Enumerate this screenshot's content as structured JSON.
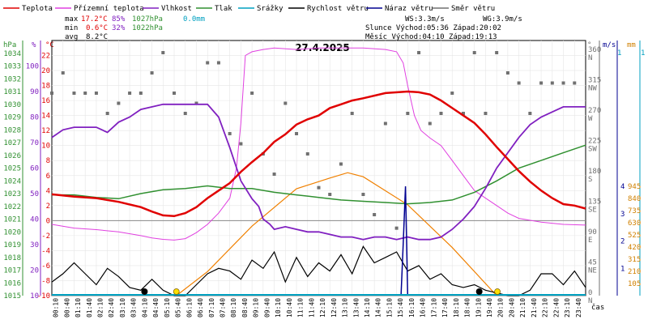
{
  "chart_data": {
    "type": "line",
    "title": "27.4.2025",
    "xlabel": "čas",
    "legend": [
      {
        "name": "Teplota",
        "color": "#e00000"
      },
      {
        "name": "Přízemní teplota",
        "color": "#e040e0"
      },
      {
        "name": "Vlhkost",
        "color": "#8020c0"
      },
      {
        "name": "Tlak",
        "color": "#309030"
      },
      {
        "name": "Srážky",
        "color": "#00a0c0"
      },
      {
        "name": "Rychlost větru",
        "color": "#000000"
      },
      {
        "name": "Náraz větru",
        "color": "#000090"
      },
      {
        "name": "Směr větru",
        "color": "#707070"
      }
    ],
    "stats": {
      "max": {
        "label": "max",
        "temp": "17.2°C",
        "hum": "85%",
        "press": "1027hPa",
        "rain": "0.0mm"
      },
      "min": {
        "label": "min",
        "temp": "0.6°C",
        "hum": "32%",
        "press": "1022hPa"
      },
      "avg": {
        "label": "avg",
        "temp": "8.2°C"
      }
    },
    "info": {
      "ws": "WS:3.3m/s",
      "wg": "WG:3.9m/s",
      "sun": "Slunce Východ:05:36  Západ:20:02",
      "moon": "Měsíc  Východ:04:10  Západ:19:13"
    },
    "axes": {
      "hpa": {
        "unit": "hPa",
        "ticks": [
          1015,
          1016,
          1017,
          1018,
          1019,
          1020,
          1021,
          1022,
          1023,
          1024,
          1025,
          1026,
          1027,
          1028,
          1029,
          1030,
          1031,
          1032,
          1033,
          1034
        ]
      },
      "pct": {
        "unit": "%",
        "ticks": [
          10,
          20,
          30,
          40,
          50,
          60,
          70,
          80,
          90,
          100
        ]
      },
      "temp": {
        "unit": "°C",
        "ticks": [
          -10,
          -8,
          -6,
          -4,
          -2,
          0,
          2,
          4,
          6,
          8,
          10,
          12,
          14,
          16,
          18,
          20,
          22
        ]
      },
      "dir": {
        "unit": "°",
        "ticks": [
          {
            "deg": "0",
            "dir": "N"
          },
          {
            "deg": "45",
            "dir": "NE"
          },
          {
            "deg": "90",
            "dir": "E"
          },
          {
            "deg": "135",
            "dir": "SE"
          },
          {
            "deg": "180",
            "dir": "S"
          },
          {
            "deg": "225",
            "dir": "SW"
          },
          {
            "deg": "270",
            "dir": "W"
          },
          {
            "deg": "315",
            "dir": "NW"
          },
          {
            "deg": "360",
            "dir": "N"
          }
        ]
      },
      "ms": {
        "unit": "m/s",
        "ticks": [
          1,
          2,
          3,
          4
        ]
      },
      "mm": {
        "unit": "mm",
        "ticks": [
          105,
          210,
          315,
          420,
          525,
          630,
          735,
          840,
          945
        ]
      },
      "ms_top": "1",
      "mm_top": "1",
      "x_ticks": [
        "00:10",
        "00:40",
        "01:10",
        "01:40",
        "02:10",
        "02:40",
        "03:10",
        "03:40",
        "04:10",
        "04:40",
        "05:10",
        "05:40",
        "06:10",
        "06:40",
        "07:10",
        "07:40",
        "08:10",
        "08:40",
        "09:10",
        "09:40",
        "10:10",
        "10:40",
        "11:10",
        "11:40",
        "12:10",
        "12:40",
        "13:10",
        "13:40",
        "14:10",
        "14:40",
        "15:10",
        "15:40",
        "16:10",
        "16:40",
        "17:10",
        "17:40",
        "18:10",
        "18:40",
        "19:10",
        "19:40",
        "20:10",
        "20:40",
        "21:10",
        "21:40",
        "22:10",
        "22:40",
        "23:10",
        "23:40"
      ]
    },
    "series": {
      "temperature": [
        [
          0,
          3.5
        ],
        [
          1,
          3.2
        ],
        [
          2,
          3
        ],
        [
          3,
          2.5
        ],
        [
          4,
          1.8
        ],
        [
          4.5,
          1.2
        ],
        [
          5,
          0.7
        ],
        [
          5.5,
          0.6
        ],
        [
          6,
          1
        ],
        [
          6.5,
          1.8
        ],
        [
          7,
          3
        ],
        [
          7.5,
          4
        ],
        [
          8,
          5
        ],
        [
          8.5,
          6.5
        ],
        [
          9,
          7.8
        ],
        [
          9.5,
          9
        ],
        [
          10,
          10.5
        ],
        [
          10.5,
          11.5
        ],
        [
          11,
          12.8
        ],
        [
          11.5,
          13.5
        ],
        [
          12,
          14
        ],
        [
          12.5,
          15
        ],
        [
          13,
          15.5
        ],
        [
          13.5,
          16
        ],
        [
          14,
          16.3
        ],
        [
          15,
          17
        ],
        [
          16,
          17.2
        ],
        [
          16.5,
          17.1
        ],
        [
          17,
          16.8
        ],
        [
          17.5,
          16
        ],
        [
          18,
          15
        ],
        [
          18.5,
          14
        ],
        [
          19,
          13
        ],
        [
          19.5,
          11.5
        ],
        [
          20,
          9.8
        ],
        [
          20.5,
          8.2
        ],
        [
          21,
          6.6
        ],
        [
          21.5,
          5.2
        ],
        [
          22,
          4
        ],
        [
          22.5,
          3
        ],
        [
          23,
          2.2
        ],
        [
          23.5,
          2
        ],
        [
          24,
          1.6
        ]
      ],
      "ground_temperature": [
        [
          0,
          -0.5
        ],
        [
          1,
          -1
        ],
        [
          2,
          -1.2
        ],
        [
          3,
          -1.5
        ],
        [
          4,
          -2
        ],
        [
          4.5,
          -2.3
        ],
        [
          5,
          -2.5
        ],
        [
          5.5,
          -2.6
        ],
        [
          6,
          -2.4
        ],
        [
          6.5,
          -1.6
        ],
        [
          7,
          -0.5
        ],
        [
          7.5,
          1
        ],
        [
          8,
          3
        ],
        [
          8.3,
          7
        ],
        [
          8.5,
          13
        ],
        [
          8.7,
          22
        ],
        [
          9,
          22.5
        ],
        [
          9.5,
          22.8
        ],
        [
          10,
          23
        ],
        [
          11,
          22.8
        ],
        [
          12,
          23
        ],
        [
          13,
          23
        ],
        [
          14,
          23
        ],
        [
          15,
          22.8
        ],
        [
          15.5,
          22.5
        ],
        [
          15.8,
          21
        ],
        [
          16,
          18
        ],
        [
          16.3,
          14
        ],
        [
          16.6,
          12
        ],
        [
          17,
          11
        ],
        [
          17.5,
          10
        ],
        [
          18,
          8
        ],
        [
          18.5,
          6
        ],
        [
          19,
          4
        ],
        [
          19.5,
          3
        ],
        [
          20,
          2
        ],
        [
          20.5,
          1
        ],
        [
          21,
          0.3
        ],
        [
          22,
          -0.2
        ],
        [
          23,
          -0.5
        ],
        [
          24,
          -0.6
        ]
      ],
      "humidity": [
        [
          0,
          72
        ],
        [
          0.5,
          75
        ],
        [
          1,
          76
        ],
        [
          2,
          76
        ],
        [
          2.5,
          74
        ],
        [
          3,
          78
        ],
        [
          3.5,
          80
        ],
        [
          4,
          83
        ],
        [
          5,
          85
        ],
        [
          6,
          85
        ],
        [
          7,
          85
        ],
        [
          7.5,
          80
        ],
        [
          8,
          68
        ],
        [
          8.5,
          55
        ],
        [
          9,
          48
        ],
        [
          9.3,
          45
        ],
        [
          9.5,
          40
        ],
        [
          9.8,
          38
        ],
        [
          10,
          36
        ],
        [
          10.5,
          37
        ],
        [
          11,
          36
        ],
        [
          11.5,
          35
        ],
        [
          12,
          35
        ],
        [
          12.5,
          34
        ],
        [
          13,
          33
        ],
        [
          13.5,
          33
        ],
        [
          14,
          32
        ],
        [
          14.5,
          33
        ],
        [
          15,
          33
        ],
        [
          15.5,
          32
        ],
        [
          16,
          33
        ],
        [
          16.5,
          32
        ],
        [
          17,
          32
        ],
        [
          17.5,
          33
        ],
        [
          18,
          36
        ],
        [
          18.5,
          40
        ],
        [
          19,
          45
        ],
        [
          19.5,
          52
        ],
        [
          20,
          60
        ],
        [
          20.5,
          66
        ],
        [
          21,
          72
        ],
        [
          21.5,
          77
        ],
        [
          22,
          80
        ],
        [
          22.5,
          82
        ],
        [
          23,
          84
        ],
        [
          24,
          84
        ]
      ],
      "pressure": [
        [
          0,
          1022.9
        ],
        [
          1,
          1022.9
        ],
        [
          2,
          1022.7
        ],
        [
          3,
          1022.6
        ],
        [
          4,
          1023
        ],
        [
          5,
          1023.3
        ],
        [
          6,
          1023.4
        ],
        [
          7,
          1023.6
        ],
        [
          8,
          1023.4
        ],
        [
          9,
          1023.4
        ],
        [
          10,
          1023.1
        ],
        [
          11,
          1022.9
        ],
        [
          12,
          1022.7
        ],
        [
          13,
          1022.5
        ],
        [
          14,
          1022.4
        ],
        [
          15,
          1022.3
        ],
        [
          16,
          1022.2
        ],
        [
          17,
          1022.3
        ],
        [
          18,
          1022.5
        ],
        [
          19,
          1023.1
        ],
        [
          20,
          1024
        ],
        [
          21,
          1025
        ],
        [
          22,
          1025.6
        ],
        [
          23,
          1026.2
        ],
        [
          24,
          1026.8
        ]
      ],
      "wind_speed": [
        [
          0,
          0.5
        ],
        [
          0.5,
          0.8
        ],
        [
          1,
          1.2
        ],
        [
          1.5,
          0.8
        ],
        [
          2,
          0.4
        ],
        [
          2.5,
          1
        ],
        [
          3,
          0.7
        ],
        [
          3.5,
          0.3
        ],
        [
          4,
          0.2
        ],
        [
          4.5,
          0.6
        ],
        [
          5,
          0.2
        ],
        [
          5.5,
          0
        ],
        [
          6,
          0
        ],
        [
          6.5,
          0.4
        ],
        [
          7,
          0.8
        ],
        [
          7.5,
          1
        ],
        [
          8,
          0.9
        ],
        [
          8.5,
          0.6
        ],
        [
          9,
          1.3
        ],
        [
          9.5,
          1
        ],
        [
          10,
          1.6
        ],
        [
          10.5,
          0.5
        ],
        [
          11,
          1.4
        ],
        [
          11.5,
          0.7
        ],
        [
          12,
          1.2
        ],
        [
          12.5,
          0.9
        ],
        [
          13,
          1.5
        ],
        [
          13.5,
          0.8
        ],
        [
          14,
          1.8
        ],
        [
          14.5,
          1.2
        ],
        [
          15,
          1.4
        ],
        [
          15.5,
          1.6
        ],
        [
          16,
          0.9
        ],
        [
          16.5,
          1.1
        ],
        [
          17,
          0.6
        ],
        [
          17.5,
          0.8
        ],
        [
          18,
          0.4
        ],
        [
          18.5,
          0.3
        ],
        [
          19,
          0.4
        ],
        [
          19.5,
          0.2
        ],
        [
          20,
          0.1
        ],
        [
          20.5,
          0
        ],
        [
          21,
          0
        ],
        [
          21.5,
          0.2
        ],
        [
          22,
          0.8
        ],
        [
          22.5,
          0.8
        ],
        [
          23,
          0.4
        ],
        [
          23.5,
          0.9
        ],
        [
          24,
          0.3
        ]
      ],
      "wind_gust": [
        [
          15.7,
          0
        ],
        [
          15.8,
          1.9
        ],
        [
          15.9,
          4
        ],
        [
          16,
          0
        ]
      ],
      "sun_elevation": [
        [
          5.6,
          0
        ],
        [
          7,
          9
        ],
        [
          9,
          26
        ],
        [
          11,
          40
        ],
        [
          12.5,
          44
        ],
        [
          13.3,
          46
        ],
        [
          14,
          44.5
        ],
        [
          16,
          34
        ],
        [
          18,
          18
        ],
        [
          20,
          0
        ]
      ],
      "wind_direction": [
        [
          0,
          300
        ],
        [
          0.5,
          330
        ],
        [
          1,
          300
        ],
        [
          1.5,
          300
        ],
        [
          2,
          300
        ],
        [
          2.5,
          270
        ],
        [
          3,
          285
        ],
        [
          3.5,
          300
        ],
        [
          4,
          300
        ],
        [
          4.5,
          330
        ],
        [
          5,
          360
        ],
        [
          5.5,
          300
        ],
        [
          6,
          270
        ],
        [
          6.5,
          285
        ],
        [
          7,
          345
        ],
        [
          7.5,
          345
        ],
        [
          8,
          240
        ],
        [
          8.5,
          225
        ],
        [
          9,
          300
        ],
        [
          9.5,
          210
        ],
        [
          10,
          180
        ],
        [
          10.5,
          285
        ],
        [
          11,
          240
        ],
        [
          11.5,
          210
        ],
        [
          12,
          160
        ],
        [
          12.5,
          150
        ],
        [
          13,
          195
        ],
        [
          13.5,
          270
        ],
        [
          14,
          150
        ],
        [
          14.5,
          120
        ],
        [
          15,
          255
        ],
        [
          15.5,
          100
        ],
        [
          16,
          270
        ],
        [
          16.5,
          360
        ],
        [
          17,
          255
        ],
        [
          17.5,
          270
        ],
        [
          18,
          300
        ],
        [
          18.5,
          270
        ],
        [
          19,
          360
        ],
        [
          19.5,
          270
        ],
        [
          20,
          360
        ],
        [
          20.5,
          330
        ],
        [
          21,
          315
        ],
        [
          21.5,
          270
        ],
        [
          22,
          315
        ],
        [
          22.5,
          315
        ],
        [
          23,
          315
        ],
        [
          23.5,
          315
        ]
      ]
    }
  }
}
